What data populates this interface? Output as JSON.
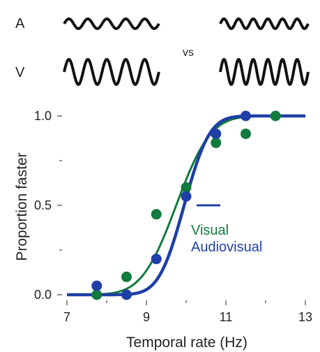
{
  "stimuli": {
    "label_a": "A",
    "label_v": "V",
    "vs_label": "vs"
  },
  "chart_data": {
    "type": "scatter",
    "xlabel": "Temporal rate (Hz)",
    "ylabel": "Proportion faster",
    "xlim": [
      7,
      13
    ],
    "ylim": [
      0,
      1
    ],
    "x_ticks": [
      "7",
      "9",
      "11",
      "13"
    ],
    "y_ticks": [
      "0.0",
      "0.5",
      "1.0"
    ],
    "legend_placement": "center-right",
    "series": [
      {
        "name": "Visual",
        "color": "#117a3c",
        "points": [
          [
            7.75,
            0.0
          ],
          [
            8.5,
            0.1
          ],
          [
            9.25,
            0.45
          ],
          [
            10.0,
            0.6
          ],
          [
            10.75,
            0.85
          ],
          [
            11.5,
            0.9
          ],
          [
            12.25,
            1.0
          ]
        ],
        "fit": {
          "mu": 9.75,
          "sigma": 0.68
        }
      },
      {
        "name": "Audiovisual",
        "color": "#1f3fa6",
        "points": [
          [
            7.75,
            0.05
          ],
          [
            8.5,
            0.0
          ],
          [
            9.25,
            0.2
          ],
          [
            10.0,
            0.55
          ],
          [
            10.75,
            0.9
          ],
          [
            11.5,
            1.0
          ]
        ],
        "fit": {
          "mu": 9.95,
          "sigma": 0.5
        }
      }
    ]
  }
}
